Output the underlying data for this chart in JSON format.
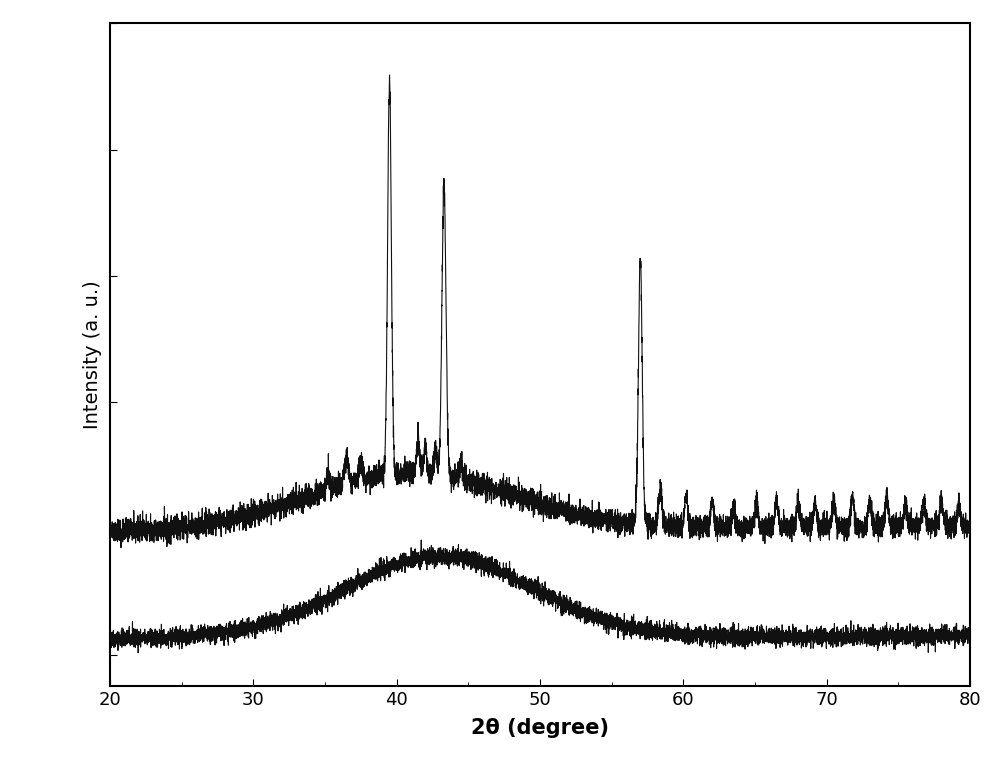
{
  "x_min": 20,
  "x_max": 80,
  "xlabel": "2θ (degree)",
  "ylabel": "Intensity (a. u.)",
  "xlabel_fontsize": 15,
  "ylabel_fontsize": 14,
  "tick_fontsize": 13,
  "background_color": "#ffffff",
  "line_color": "#111111",
  "seed": 42,
  "ylim_min": -0.05,
  "ylim_max": 1.0
}
